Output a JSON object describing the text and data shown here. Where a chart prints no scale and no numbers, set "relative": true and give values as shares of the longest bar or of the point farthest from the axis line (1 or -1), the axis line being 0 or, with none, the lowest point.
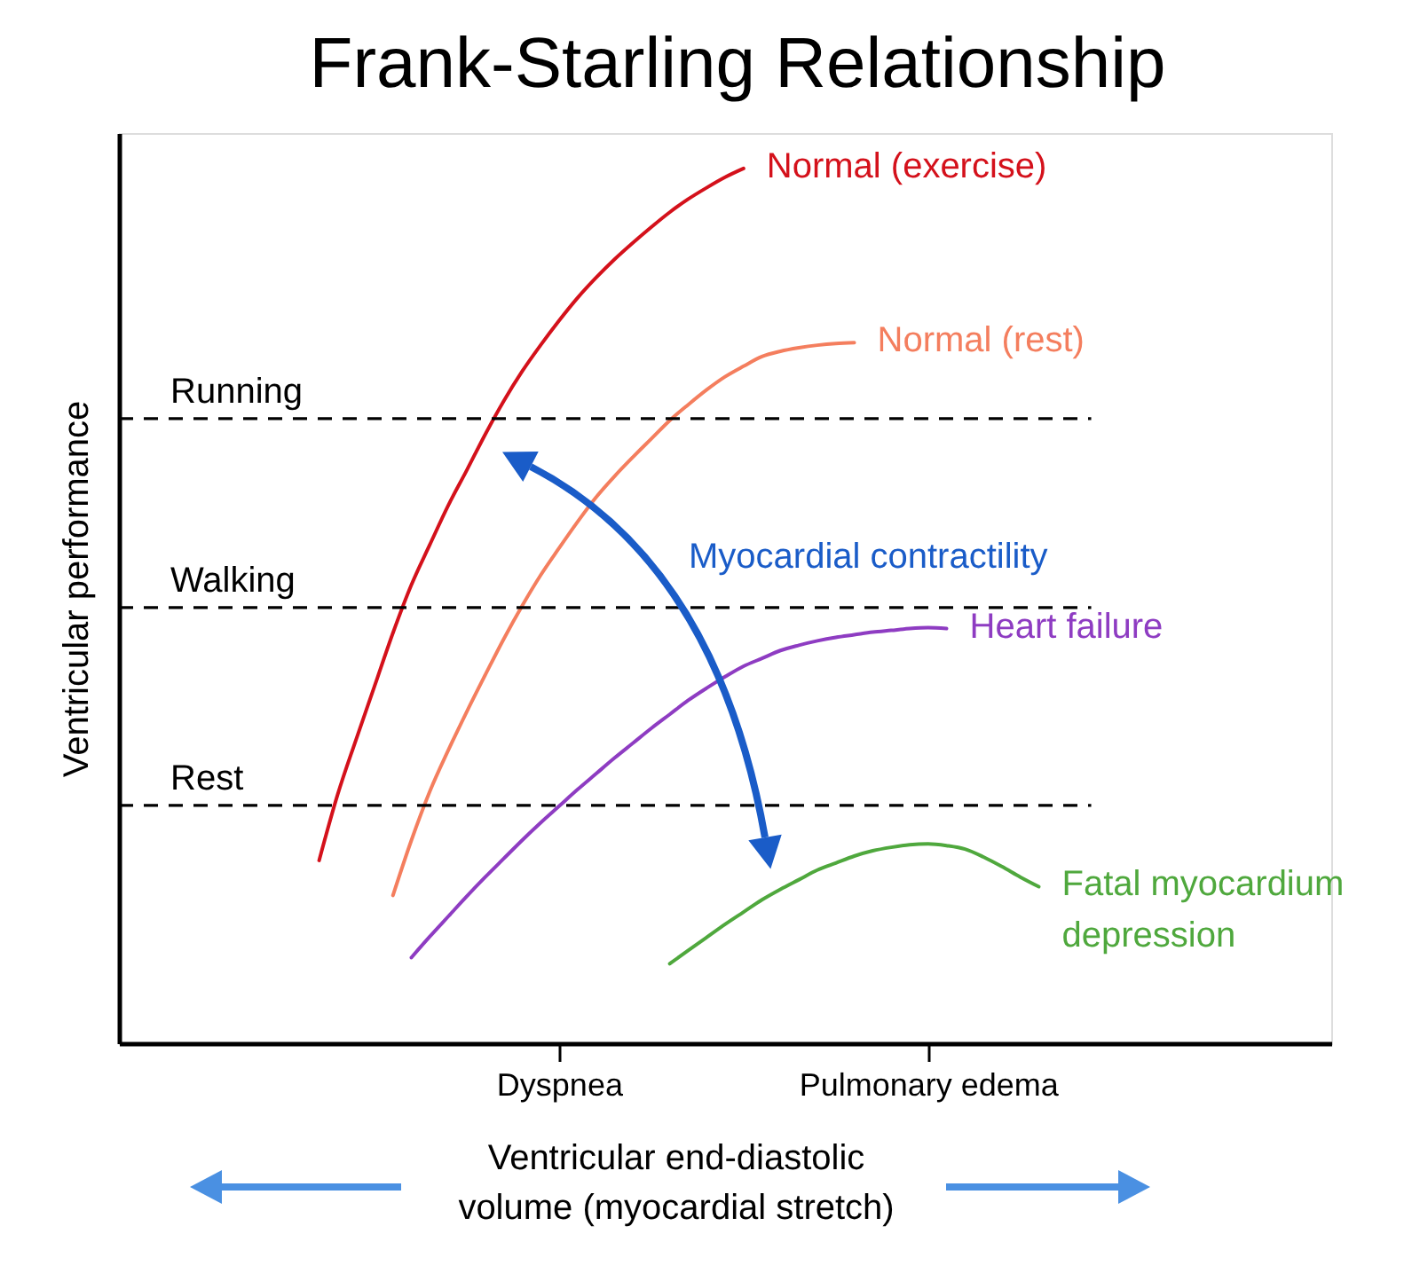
{
  "chart_data": {
    "type": "line",
    "title": "Frank-Starling Relationship",
    "xlabel": "Ventricular end-diastolic volume (myocardial stretch)",
    "ylabel": "Ventricular performance",
    "relative": true,
    "grid": false,
    "legend": false,
    "categories": [
      null,
      null,
      null,
      null,
      null,
      null,
      null,
      null,
      null,
      null,
      null,
      null,
      null,
      null,
      null,
      null,
      null,
      null,
      null,
      null,
      null,
      null,
      null,
      "Dyspnea",
      null,
      null,
      null,
      null,
      null,
      null,
      null,
      null,
      null,
      null,
      null,
      null,
      null,
      null,
      null,
      null,
      null,
      null,
      null,
      "Pulmonary edema",
      null,
      null,
      null,
      null,
      null,
      null,
      null,
      null,
      null,
      null,
      null,
      null,
      null,
      null,
      null,
      null,
      null,
      null,
      null,
      null,
      null
    ],
    "series": [
      {
        "name": "Normal (exercise)",
        "color": "#d4111b",
        "values": [
          null,
          null,
          null,
          null,
          null,
          null,
          null,
          null,
          null,
          null,
          0.209,
          0.284,
          0.347,
          0.408,
          0.469,
          0.524,
          0.57,
          0.615,
          0.655,
          0.696,
          0.734,
          0.768,
          0.798,
          0.826,
          0.852,
          0.875,
          0.896,
          0.915,
          0.933,
          0.95,
          0.965,
          0.978,
          0.99,
          1.0,
          null,
          null,
          null,
          null,
          null,
          null,
          null,
          null,
          null,
          null,
          null,
          null,
          null,
          null,
          null,
          null,
          null,
          null,
          null,
          null,
          null,
          null,
          null,
          null,
          null,
          null,
          null,
          null,
          null,
          null,
          null
        ]
      },
      {
        "name": "Normal (rest)",
        "color": "#f47e5e",
        "values": [
          null,
          null,
          null,
          null,
          null,
          null,
          null,
          null,
          null,
          null,
          null,
          null,
          null,
          null,
          0.169,
          0.232,
          0.288,
          0.335,
          0.379,
          0.421,
          0.462,
          0.5,
          0.535,
          0.566,
          0.596,
          0.624,
          0.648,
          0.67,
          0.691,
          0.712,
          0.73,
          0.747,
          0.762,
          0.774,
          0.785,
          0.791,
          0.795,
          0.798,
          0.8,
          0.801,
          null,
          null,
          null,
          null,
          null,
          null,
          null,
          null,
          null,
          null,
          null,
          null,
          null,
          null,
          null,
          null,
          null,
          null,
          null,
          null,
          null,
          null,
          null,
          null,
          null
        ]
      },
      {
        "name": "Heart failure",
        "color": "#8e3cc2",
        "values": [
          null,
          null,
          null,
          null,
          null,
          null,
          null,
          null,
          null,
          null,
          null,
          null,
          null,
          null,
          null,
          0.098,
          0.122,
          0.145,
          0.168,
          0.19,
          0.211,
          0.232,
          0.252,
          0.271,
          0.29,
          0.308,
          0.326,
          0.343,
          0.36,
          0.376,
          0.392,
          0.406,
          0.419,
          0.431,
          0.44,
          0.449,
          0.455,
          0.46,
          0.464,
          0.467,
          0.47,
          0.472,
          0.474,
          0.475,
          0.474,
          null,
          null,
          null,
          null,
          null,
          null,
          null,
          null,
          null,
          null,
          null,
          null,
          null,
          null,
          null,
          null,
          null,
          null,
          null,
          null
        ]
      },
      {
        "name": "Fatal myocardium depression",
        "color": "#4fa83d",
        "values": [
          null,
          null,
          null,
          null,
          null,
          null,
          null,
          null,
          null,
          null,
          null,
          null,
          null,
          null,
          null,
          null,
          null,
          null,
          null,
          null,
          null,
          null,
          null,
          null,
          null,
          null,
          null,
          null,
          null,
          0.091,
          0.106,
          0.121,
          0.136,
          0.15,
          0.164,
          0.176,
          0.187,
          0.198,
          0.206,
          0.214,
          0.22,
          0.224,
          0.227,
          0.228,
          0.226,
          0.222,
          0.213,
          0.202,
          0.19,
          0.179,
          null,
          null,
          null,
          null,
          null,
          null,
          null,
          null,
          null,
          null,
          null,
          null,
          null,
          null,
          null
        ]
      }
    ],
    "ref_lines": [
      {
        "axis": "y",
        "value": 0.714,
        "label": "Running",
        "color": "#000000",
        "line_style": "dashed"
      },
      {
        "axis": "y",
        "value": 0.498,
        "label": "Walking",
        "color": "#000000",
        "line_style": "dashed"
      },
      {
        "axis": "y",
        "value": 0.272,
        "label": "Rest",
        "color": "#000000",
        "line_style": "dashed"
      }
    ],
    "annotations": [
      "Myocardial contractility"
    ]
  }
}
